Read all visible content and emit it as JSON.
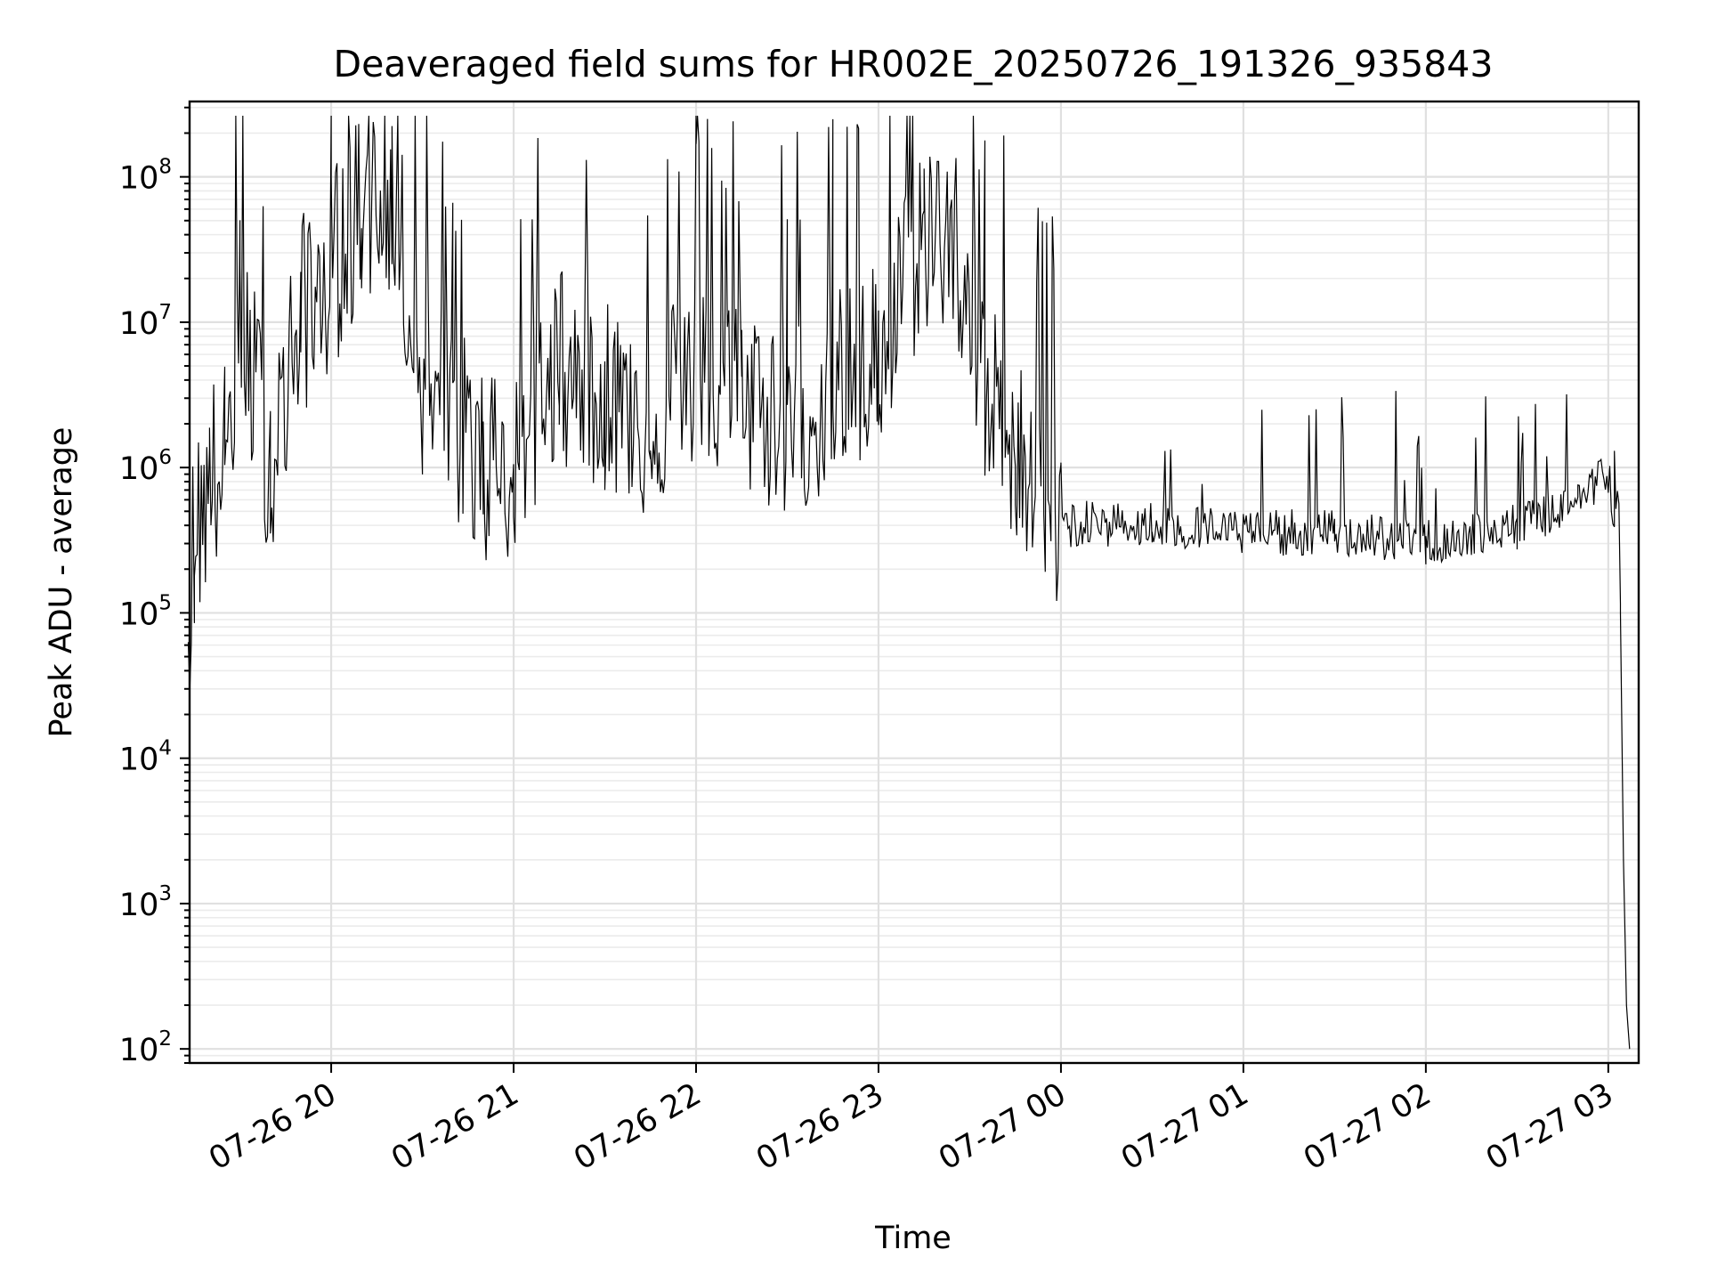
{
  "chart_data": {
    "type": "line",
    "title": "Deaveraged field sums for HR002E_20250726_191326_935843",
    "xlabel": "Time",
    "ylabel": "Peak ADU - average",
    "yscale": "log",
    "ylim": [
      80,
      330000000
    ],
    "xlim": [
      "2025-07-26 19:13:26",
      "2025-07-27 03:10:00"
    ],
    "x_ticks": [
      "07-26 20",
      "07-26 21",
      "07-26 22",
      "07-26 23",
      "07-27 00",
      "07-27 01",
      "07-27 02",
      "07-27 03"
    ],
    "x_tick_times": [
      "2025-07-26 20:00",
      "2025-07-26 21:00",
      "2025-07-26 22:00",
      "2025-07-26 23:00",
      "2025-07-27 00:00",
      "2025-07-27 01:00",
      "2025-07-27 02:00",
      "2025-07-27 03:00"
    ],
    "y_tick_exponents": [
      2,
      3,
      4,
      5,
      6,
      7,
      8
    ],
    "grid": true,
    "line_color": "#000000",
    "series": [
      {
        "x": [
          "2025-07-26 19:13",
          "2025-07-26 19:15",
          "2025-07-26 19:20",
          "2025-07-26 19:25",
          "2025-07-26 19:30",
          "2025-07-26 19:40",
          "2025-07-26 19:50",
          "2025-07-26 20:00",
          "2025-07-26 20:10",
          "2025-07-26 20:20",
          "2025-07-26 20:30",
          "2025-07-26 20:40",
          "2025-07-26 20:50",
          "2025-07-26 21:00",
          "2025-07-26 21:15",
          "2025-07-26 21:30",
          "2025-07-26 21:45",
          "2025-07-26 22:00",
          "2025-07-26 22:15",
          "2025-07-26 22:30",
          "2025-07-26 22:45",
          "2025-07-26 23:00",
          "2025-07-26 23:15",
          "2025-07-26 23:25",
          "2025-07-26 23:35",
          "2025-07-26 23:45",
          "2025-07-27 00:00",
          "2025-07-27 00:30",
          "2025-07-27 01:00",
          "2025-07-27 01:30",
          "2025-07-27 02:00",
          "2025-07-27 02:30",
          "2025-07-27 02:50",
          "2025-07-27 03:00",
          "2025-07-27 03:02",
          "2025-07-27 03:04",
          "2025-07-27 03:05",
          "2025-07-27 03:06",
          "2025-07-27 03:07"
        ],
        "y": [
          100000,
          300000,
          800000,
          1000000,
          10000000,
          1000000,
          10000000,
          20000000,
          60000000,
          70000000,
          4000000,
          2000000,
          1000000,
          1000000,
          5000000,
          3000000,
          2000000,
          5000000,
          3000000,
          2000000,
          3000000,
          5000000,
          40000000,
          35000000,
          3000000,
          1500000,
          400000,
          400000,
          350000,
          350000,
          300000,
          380000,
          600000,
          900000,
          500000,
          100000,
          2000,
          200,
          100
        ]
      }
    ]
  }
}
